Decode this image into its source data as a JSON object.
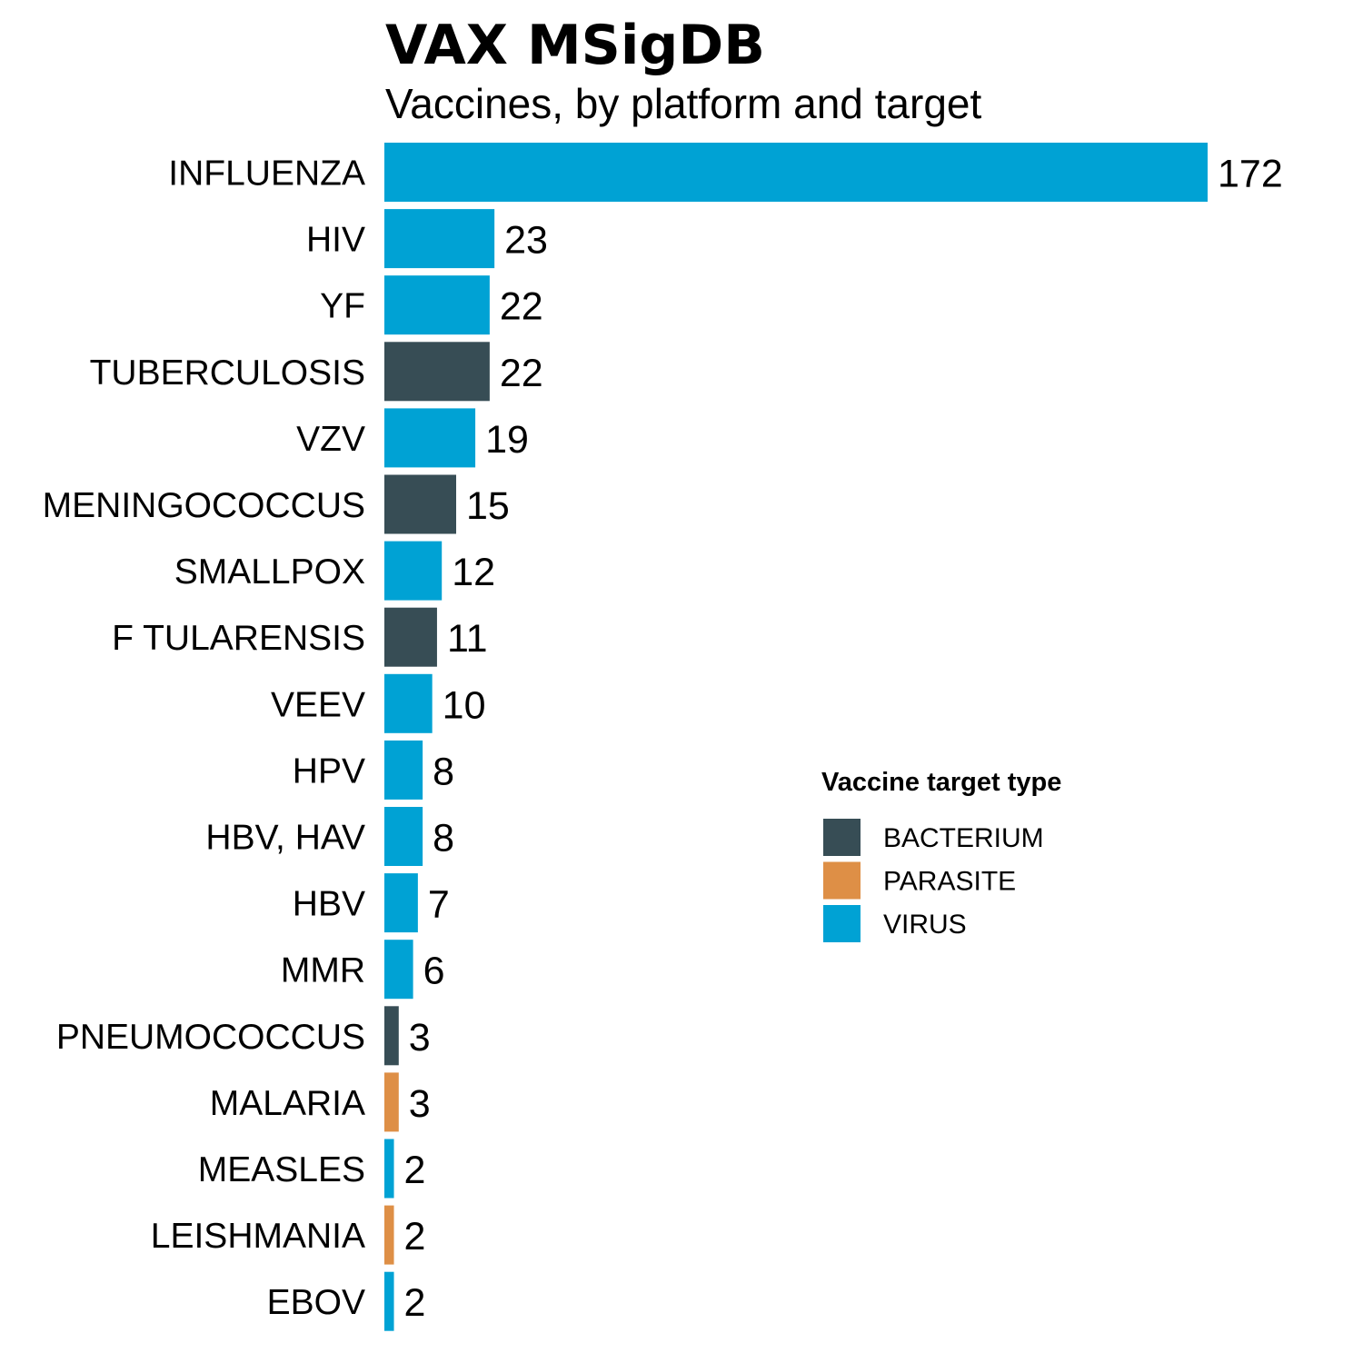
{
  "chart_data": {
    "type": "bar",
    "orientation": "horizontal",
    "title": "VAX MSigDB",
    "subtitle": "Vaccines, by platform and target",
    "xlim": [
      0,
      172
    ],
    "grid": false,
    "categories": [
      "INFLUENZA",
      "HIV",
      "YF",
      "TUBERCULOSIS",
      "VZV",
      "MENINGOCOCCUS",
      "SMALLPOX",
      "F TULARENSIS",
      "VEEV",
      "HPV",
      "HBV, HAV",
      "HBV",
      "MMR",
      "PNEUMOCOCCUS",
      "MALARIA",
      "MEASLES",
      "LEISHMANIA",
      "EBOV"
    ],
    "values": [
      172,
      23,
      22,
      22,
      19,
      15,
      12,
      11,
      10,
      8,
      8,
      7,
      6,
      3,
      3,
      2,
      2,
      2
    ],
    "groups": [
      "VIRUS",
      "VIRUS",
      "VIRUS",
      "BACTERIUM",
      "VIRUS",
      "BACTERIUM",
      "VIRUS",
      "BACTERIUM",
      "VIRUS",
      "VIRUS",
      "VIRUS",
      "VIRUS",
      "VIRUS",
      "BACTERIUM",
      "PARASITE",
      "VIRUS",
      "PARASITE",
      "VIRUS"
    ],
    "legend": {
      "title": "Vaccine target type",
      "position": "right",
      "entries": [
        {
          "name": "BACTERIUM",
          "color": "#374d55"
        },
        {
          "name": "PARASITE",
          "color": "#de8f46"
        },
        {
          "name": "VIRUS",
          "color": "#00a2d4"
        }
      ]
    }
  }
}
